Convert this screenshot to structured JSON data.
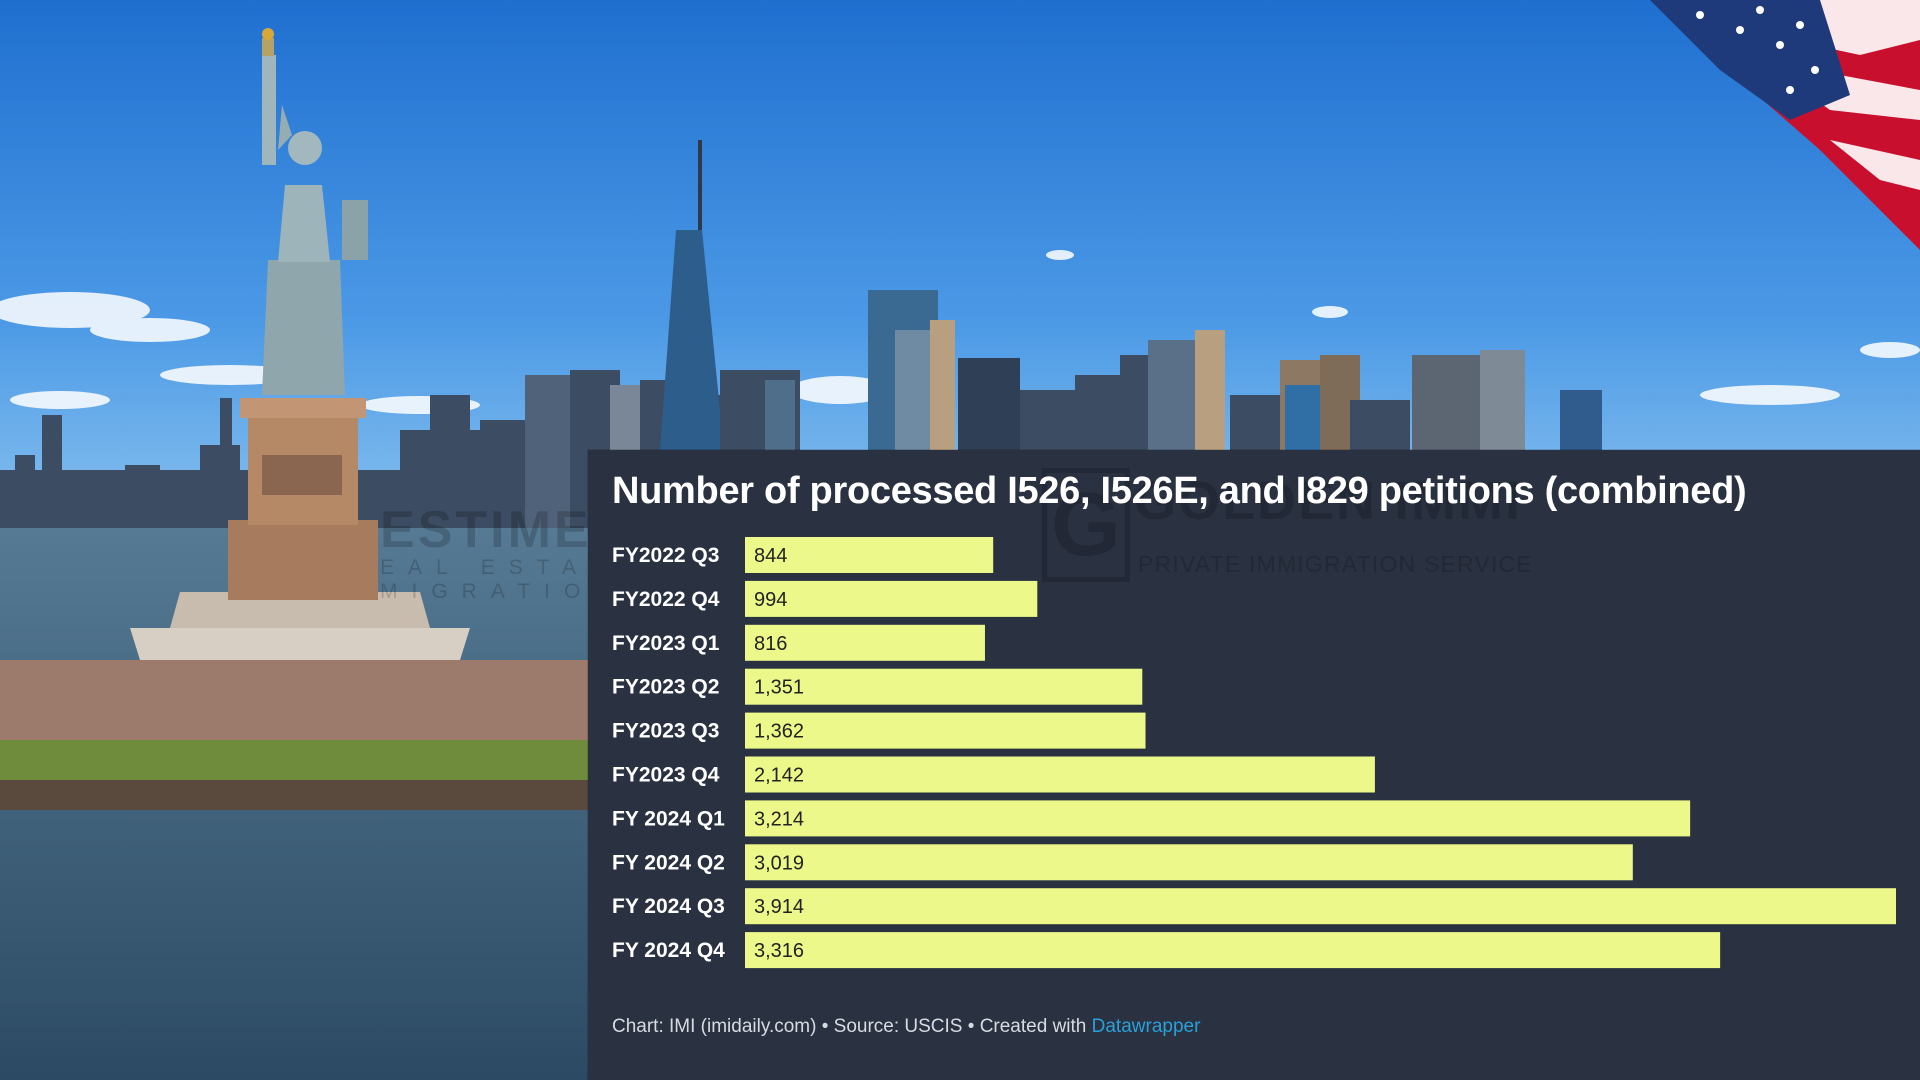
{
  "colors": {
    "panel": "#2a3140",
    "bar": "#ecf98a",
    "title": "#ffffff",
    "link": "#2aa0d9"
  },
  "watermarks": {
    "left_brand": {
      "name": "ESTIMENT",
      "tagline": "EAL ESTATE & MIGRATION"
    },
    "right_brand": {
      "logo_letter": "G",
      "name": "GOLDEN IMMI",
      "tagline": "PRIVATE IMMIGRATION SERVICE"
    }
  },
  "chart_data": {
    "type": "bar",
    "orientation": "horizontal",
    "title": "Number of processed I526, I526E, and I829 petitions (combined)",
    "categories": [
      "FY2022 Q3",
      "FY2022 Q4",
      "FY2023 Q1",
      "FY2023 Q2",
      "FY2023 Q3",
      "FY2023 Q4",
      "FY 2024 Q1",
      "FY 2024 Q2",
      "FY 2024 Q3",
      "FY 2024 Q4"
    ],
    "values": [
      844,
      994,
      816,
      1351,
      1362,
      2142,
      3214,
      3019,
      3914,
      3316
    ],
    "value_labels": [
      "844",
      "994",
      "816",
      "1,351",
      "1,362",
      "2,142",
      "3,214",
      "3,019",
      "3,914",
      "3,316"
    ],
    "xlim": [
      0,
      3914
    ],
    "grid": false
  },
  "footer": {
    "prefix": "Chart: IMI (imidaily.com) • Source: USCIS • Created with ",
    "link": "Datawrapper"
  }
}
